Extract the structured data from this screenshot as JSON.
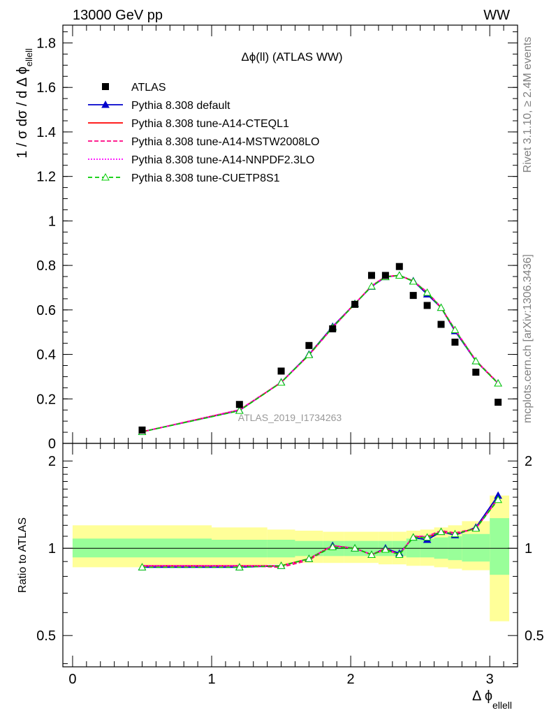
{
  "header": {
    "left": "13000 GeV pp",
    "right": "WW"
  },
  "side_labels": {
    "rivet": "Rivet 3.1.10, ≥ 2.4M events",
    "mcplots": "mcplots.cern.ch [arXiv:1306.3436]"
  },
  "chart_data": {
    "type": "line",
    "title": "Δϕ(ll) (ATLAS WW)",
    "watermark": "ATLAS_2019_I1734263",
    "xlabel": "Δ ϕ_ellell",
    "xlabel_main": "Δ ϕ",
    "xlabel_sub": "ellell",
    "ylabel": "1 / σ  dσ / d Δ ϕ_ellell",
    "ylabel_main": "1 / σ  dσ / d Δ ϕ",
    "ylabel_sub": "ellell",
    "ratio_ylabel": "Ratio to ATLAS",
    "xlim": [
      -0.07,
      3.2
    ],
    "ylim": [
      0,
      1.88
    ],
    "ratio_ylim": [
      0.39,
      2.3
    ],
    "ratio_yscale": "log",
    "legend_position": "top-left",
    "x_ticks": [
      0,
      1,
      2,
      3
    ],
    "x_tick_labels": [
      "0",
      "1",
      "2",
      "3"
    ],
    "y_ticks": [
      0,
      0.2,
      0.4,
      0.6,
      0.8,
      1,
      1.2,
      1.4,
      1.6,
      1.8
    ],
    "y_tick_labels": [
      "0",
      "0.2",
      "0.4",
      "0.6",
      "0.8",
      "1",
      "1.2",
      "1.4",
      "1.6",
      "1.8"
    ],
    "ratio_ticks": [
      0.5,
      1,
      2
    ],
    "ratio_tick_labels": [
      "0.5",
      "1",
      "2"
    ],
    "data": {
      "name": "ATLAS",
      "color": "#000000",
      "x": [
        0.5,
        1.2,
        1.5,
        1.7,
        1.87,
        2.03,
        2.15,
        2.25,
        2.35,
        2.45,
        2.55,
        2.65,
        2.75,
        2.9,
        3.06
      ],
      "y": [
        0.06,
        0.175,
        0.325,
        0.44,
        0.515,
        0.625,
        0.755,
        0.755,
        0.795,
        0.665,
        0.62,
        0.535,
        0.455,
        0.32,
        0.185
      ],
      "bins": [
        [
          0,
          1
        ],
        [
          1,
          1.4
        ],
        [
          1.4,
          1.6
        ],
        [
          1.6,
          1.8
        ],
        [
          1.8,
          1.95
        ],
        [
          1.95,
          2.1
        ],
        [
          2.1,
          2.2
        ],
        [
          2.2,
          2.3
        ],
        [
          2.3,
          2.4
        ],
        [
          2.4,
          2.5
        ],
        [
          2.5,
          2.6
        ],
        [
          2.6,
          2.7
        ],
        [
          2.7,
          2.8
        ],
        [
          2.8,
          3.0
        ],
        [
          3.0,
          3.14
        ]
      ],
      "band_inner": [
        [
          0.93,
          1.08
        ],
        [
          0.93,
          1.07
        ],
        [
          0.93,
          1.07
        ],
        [
          0.94,
          1.06
        ],
        [
          0.94,
          1.06
        ],
        [
          0.94,
          1.06
        ],
        [
          0.94,
          1.06
        ],
        [
          0.94,
          1.06
        ],
        [
          0.94,
          1.06
        ],
        [
          0.93,
          1.08
        ],
        [
          0.93,
          1.08
        ],
        [
          0.92,
          1.09
        ],
        [
          0.91,
          1.1
        ],
        [
          0.9,
          1.12
        ],
        [
          0.81,
          1.27
        ]
      ],
      "band_outer": [
        [
          0.86,
          1.2
        ],
        [
          0.87,
          1.18
        ],
        [
          0.88,
          1.16
        ],
        [
          0.89,
          1.15
        ],
        [
          0.89,
          1.14
        ],
        [
          0.89,
          1.14
        ],
        [
          0.89,
          1.14
        ],
        [
          0.88,
          1.14
        ],
        [
          0.88,
          1.14
        ],
        [
          0.87,
          1.15
        ],
        [
          0.87,
          1.16
        ],
        [
          0.86,
          1.18
        ],
        [
          0.85,
          1.2
        ],
        [
          0.84,
          1.24
        ],
        [
          0.56,
          1.52
        ]
      ]
    },
    "series": [
      {
        "name": "Pythia 8.308 default",
        "color": "#0000cc",
        "dash": "",
        "marker": "triangle-filled",
        "y": [
          0.052,
          0.148,
          0.275,
          0.4,
          0.525,
          0.628,
          0.705,
          0.748,
          0.755,
          0.73,
          0.67,
          0.61,
          0.505,
          0.37,
          0.27
        ],
        "ratio": [
          0.86,
          0.86,
          0.87,
          0.92,
          1.02,
          1.0,
          0.95,
          1.0,
          0.96,
          1.09,
          1.07,
          1.14,
          1.11,
          1.18,
          1.52
        ]
      },
      {
        "name": "Pythia 8.308 tune-A14-CTEQL1",
        "color": "#ff0000",
        "dash": "",
        "marker": "none",
        "y": [
          0.052,
          0.15,
          0.274,
          0.398,
          0.522,
          0.628,
          0.708,
          0.75,
          0.755,
          0.73,
          0.678,
          0.61,
          0.51,
          0.372,
          0.27
        ],
        "ratio": [
          0.87,
          0.87,
          0.87,
          0.92,
          1.02,
          1.0,
          0.95,
          0.99,
          0.95,
          1.1,
          1.09,
          1.14,
          1.12,
          1.17,
          1.48
        ]
      },
      {
        "name": "Pythia 8.308 tune-A14-MSTW2008LO",
        "color": "#ff0080",
        "dash": "6,3",
        "marker": "none",
        "y": [
          0.052,
          0.151,
          0.275,
          0.397,
          0.52,
          0.627,
          0.708,
          0.749,
          0.754,
          0.73,
          0.68,
          0.612,
          0.512,
          0.373,
          0.272
        ],
        "ratio": [
          0.87,
          0.87,
          0.86,
          0.91,
          1.02,
          1.0,
          0.95,
          1.0,
          0.95,
          1.1,
          1.1,
          1.15,
          1.13,
          1.17,
          1.49
        ]
      },
      {
        "name": "Pythia 8.308 tune-A14-NNPDF2.3LO",
        "color": "#ff00ff",
        "dash": "2,2",
        "marker": "none",
        "y": [
          0.052,
          0.15,
          0.274,
          0.398,
          0.521,
          0.627,
          0.707,
          0.75,
          0.755,
          0.73,
          0.679,
          0.611,
          0.511,
          0.372,
          0.271
        ],
        "ratio": [
          0.87,
          0.87,
          0.87,
          0.92,
          1.02,
          1.0,
          0.95,
          0.99,
          0.95,
          1.1,
          1.1,
          1.14,
          1.12,
          1.17,
          1.48
        ]
      },
      {
        "name": "Pythia 8.308 tune-CUETP8S1",
        "color": "#00cc00",
        "dash": "6,4",
        "marker": "triangle-open",
        "y": [
          0.052,
          0.147,
          0.274,
          0.398,
          0.521,
          0.627,
          0.706,
          0.748,
          0.755,
          0.728,
          0.678,
          0.61,
          0.51,
          0.37,
          0.27
        ],
        "ratio": [
          0.86,
          0.86,
          0.87,
          0.92,
          1.01,
          1.0,
          0.95,
          0.99,
          0.95,
          1.09,
          1.09,
          1.14,
          1.12,
          1.17,
          1.47
        ]
      }
    ]
  }
}
